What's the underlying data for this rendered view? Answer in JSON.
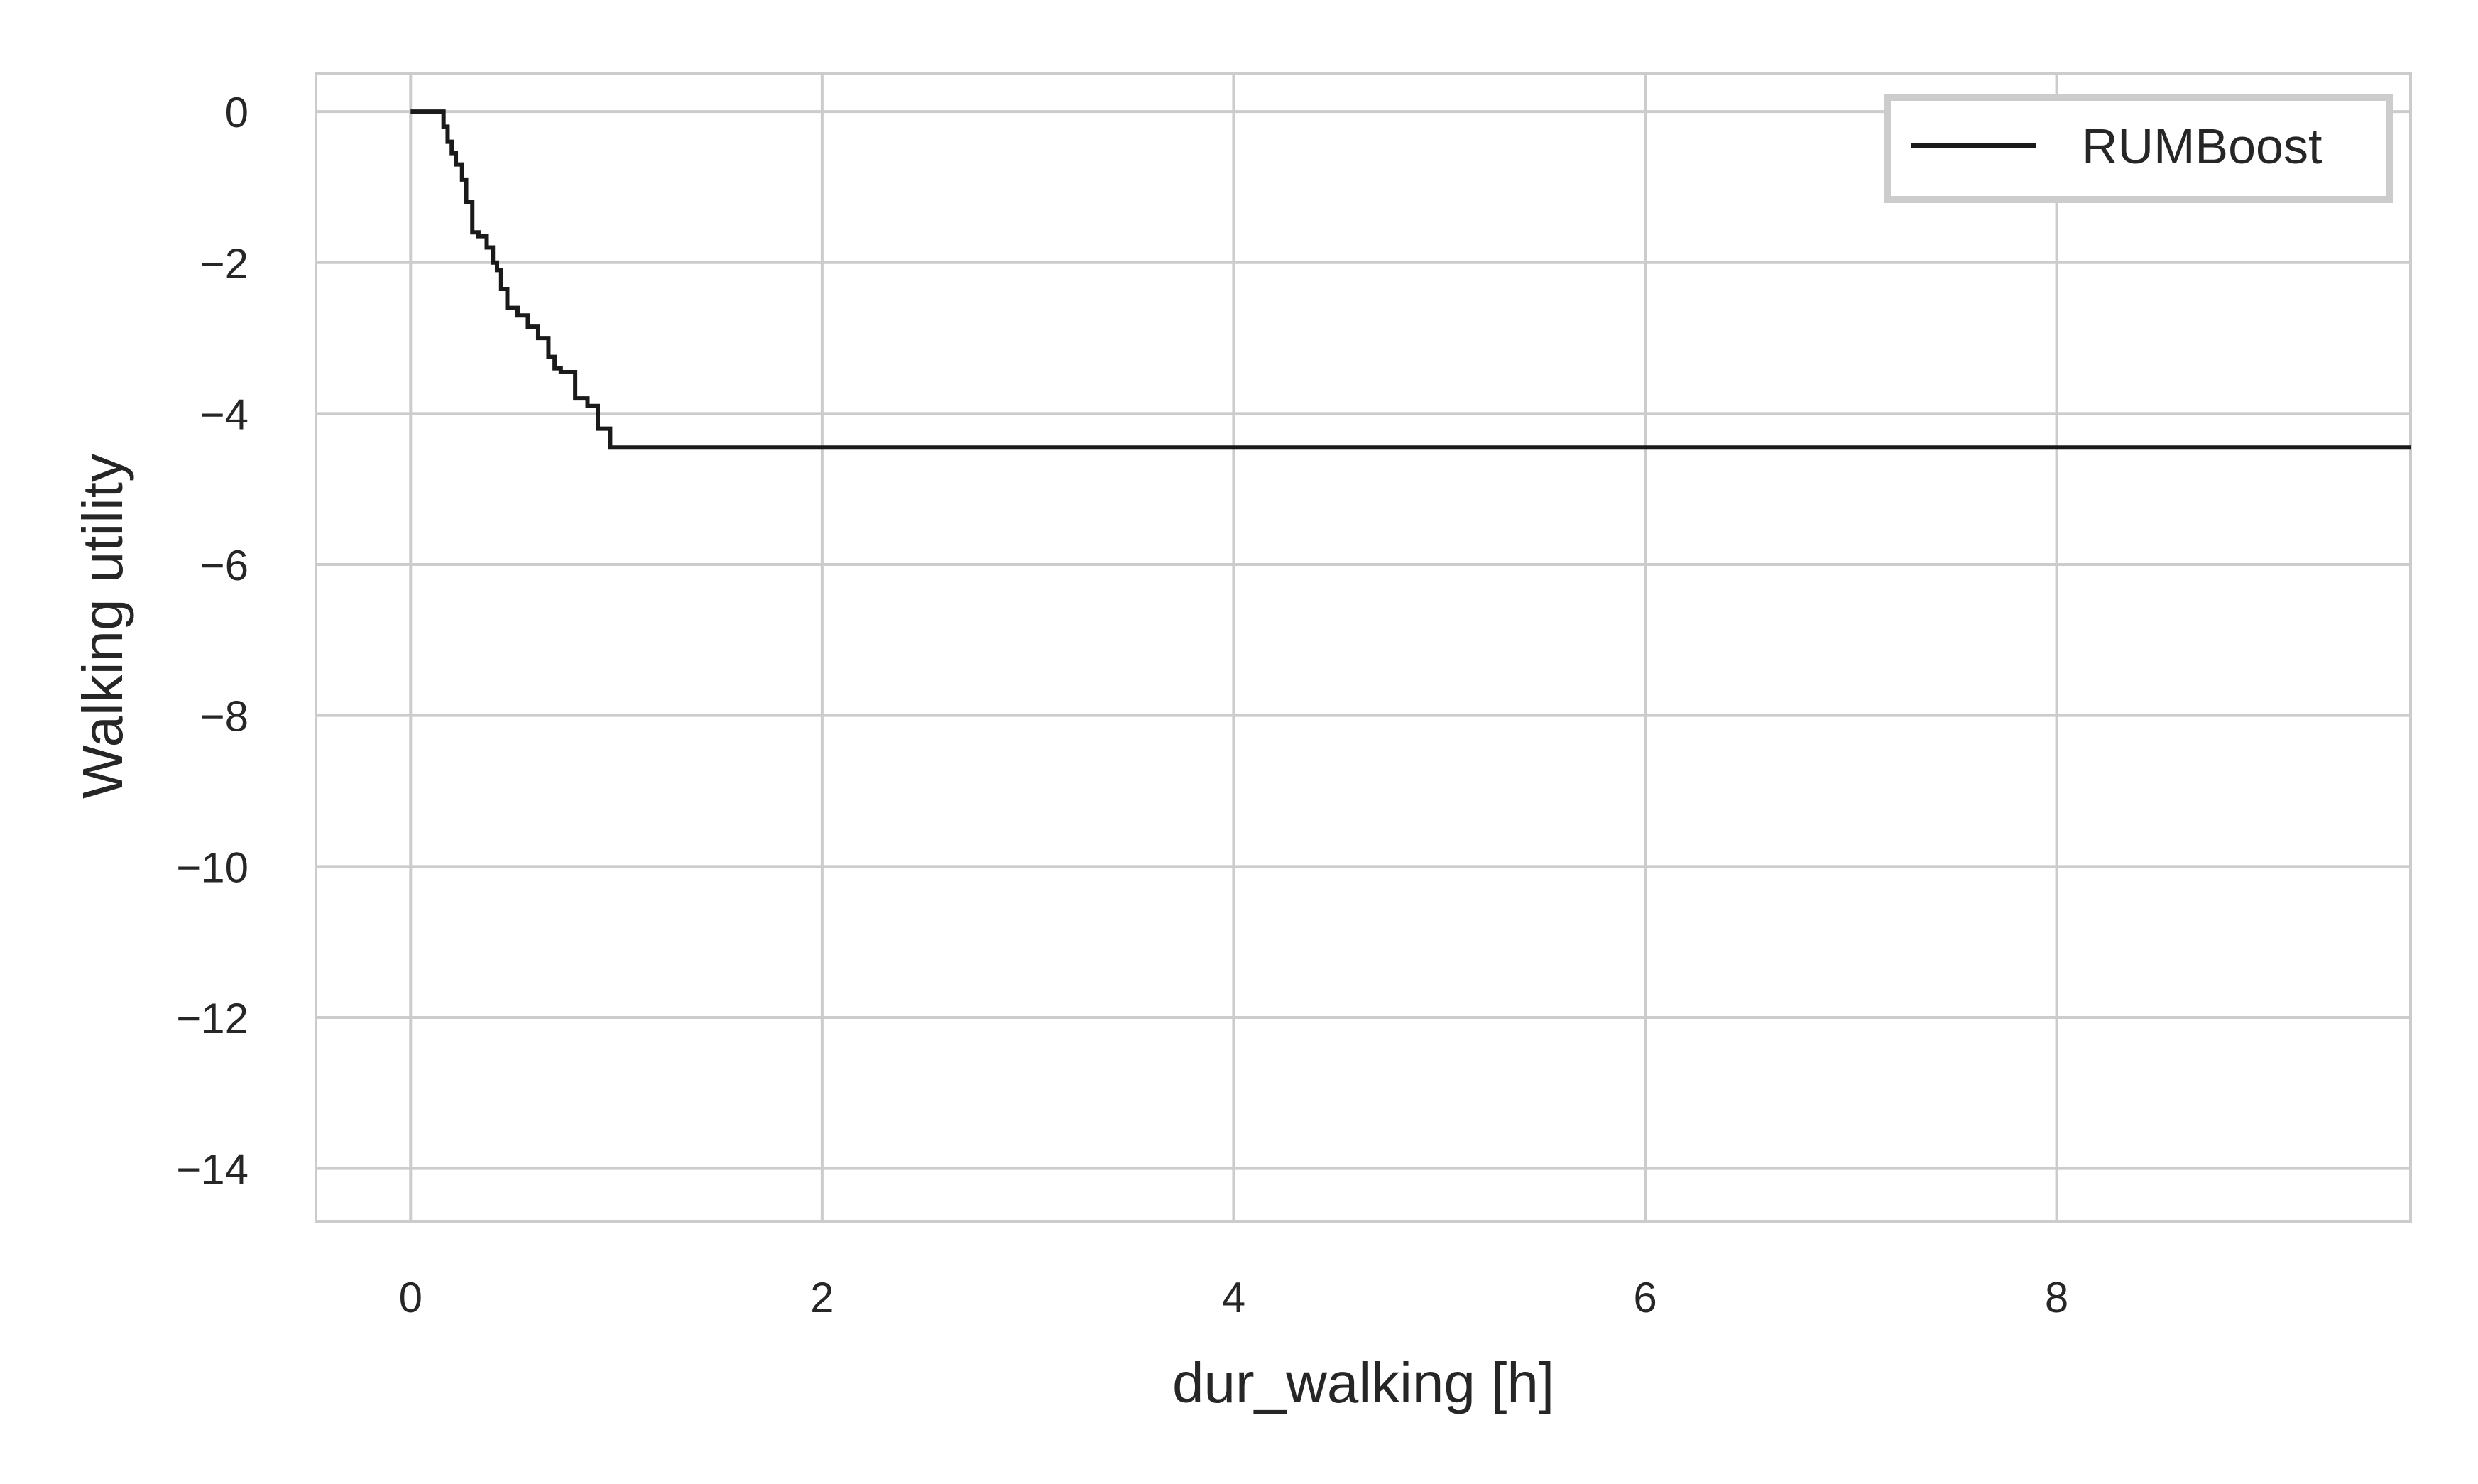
{
  "chart_data": {
    "type": "line",
    "xlabel": "dur_walking [h]",
    "ylabel": "Walking utility",
    "xlim": [
      -0.46,
      9.72
    ],
    "ylim": [
      -14.7,
      0.5
    ],
    "xticks": [
      0,
      2,
      4,
      6,
      8
    ],
    "yticks": [
      0,
      -2,
      -4,
      -6,
      -8,
      -10,
      -12,
      -14
    ],
    "xtick_labels": [
      "0",
      "2",
      "4",
      "6",
      "8"
    ],
    "ytick_labels": [
      "0",
      "−2",
      "−4",
      "−6",
      "−8",
      "−10",
      "−12",
      "−14"
    ],
    "grid": true,
    "legend": {
      "position": "top-right",
      "entries": [
        "RUMBoost"
      ]
    },
    "series": [
      {
        "name": "RUMBoost",
        "color": "#1a1a1a",
        "step": true,
        "x": [
          0,
          0.16,
          0.18,
          0.2,
          0.22,
          0.25,
          0.27,
          0.3,
          0.33,
          0.37,
          0.4,
          0.42,
          0.44,
          0.47,
          0.52,
          0.57,
          0.62,
          0.67,
          0.7,
          0.73,
          0.8,
          0.86,
          0.91,
          0.97,
          9.72
        ],
        "y": [
          0,
          -0.2,
          -0.4,
          -0.55,
          -0.7,
          -0.9,
          -1.2,
          -1.6,
          -1.65,
          -1.8,
          -2.0,
          -2.1,
          -2.35,
          -2.6,
          -2.7,
          -2.85,
          -3.0,
          -3.25,
          -3.4,
          -3.45,
          -3.8,
          -3.9,
          -4.2,
          -4.45,
          -4.45
        ]
      }
    ]
  }
}
